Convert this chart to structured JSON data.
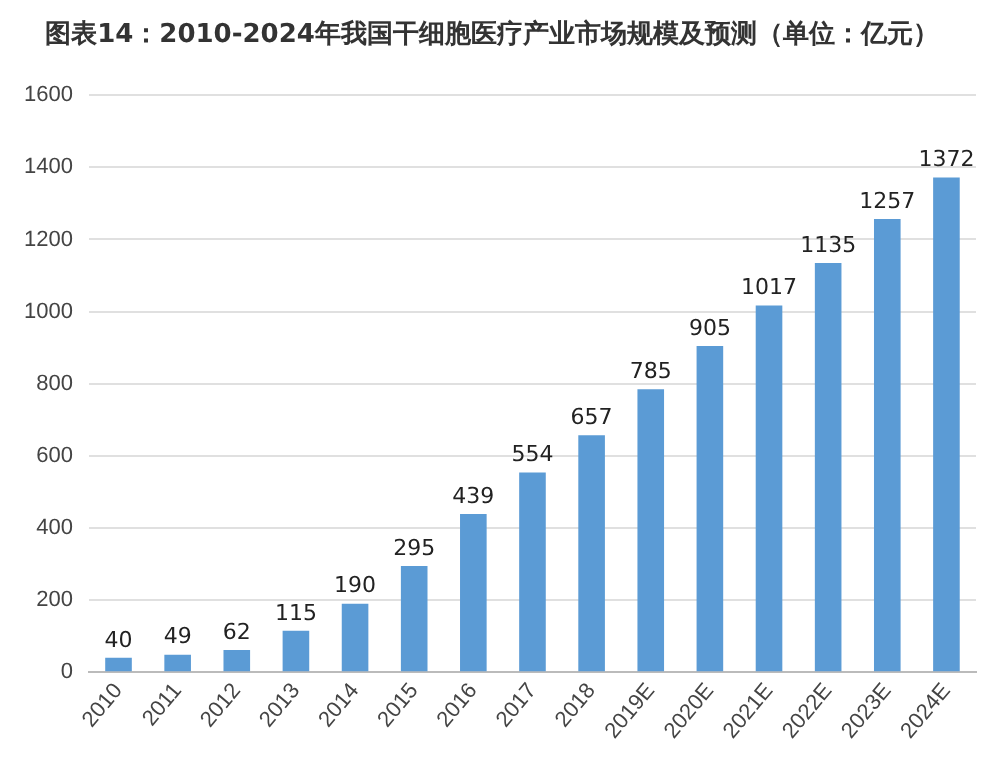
{
  "chart_data": {
    "type": "bar",
    "title": "图表14：2010-2024年我国干细胞医疗产业市场规模及预测（单位：亿元）",
    "categories": [
      "2010",
      "2011",
      "2012",
      "2013",
      "2014",
      "2015",
      "2016",
      "2017",
      "2018",
      "2019E",
      "2020E",
      "2021E",
      "2022E",
      "2023E",
      "2024E"
    ],
    "values": [
      40,
      49,
      62,
      115,
      190,
      295,
      439,
      554,
      657,
      785,
      905,
      1017,
      1135,
      1257,
      1372
    ],
    "color": "#5b9bd5",
    "ylim": [
      0,
      1600
    ],
    "yticks": [
      0,
      200,
      400,
      600,
      800,
      1000,
      1200,
      1400,
      1600
    ],
    "grid": "y",
    "data_labels": true
  }
}
